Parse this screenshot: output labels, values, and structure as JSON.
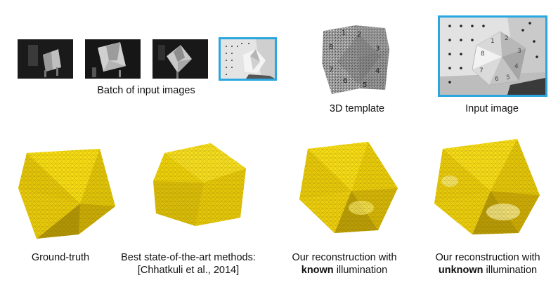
{
  "top": {
    "batch_caption": "Batch of input images",
    "template_caption": "3D template",
    "input_caption": "Input image"
  },
  "template_numbers": [
    "1",
    "2",
    "3",
    "4",
    "5",
    "6",
    "7",
    "8"
  ],
  "bottom": {
    "ground_truth": "Ground-truth",
    "sota_line1": "Best state-of-the-art methods:",
    "sota_line2": "[Chhatkuli et al., 2014]",
    "known_line1": "Our reconstruction with",
    "known_bold": "known",
    "known_rest": " illumination",
    "unknown_line1": "Our reconstruction with",
    "unknown_bold": "unknown",
    "unknown_rest": " illumination"
  },
  "colors": {
    "highlight_border": "#2aa7e0",
    "mesh_yellow": "#f2d40a",
    "mesh_dark": "#8a7400"
  }
}
